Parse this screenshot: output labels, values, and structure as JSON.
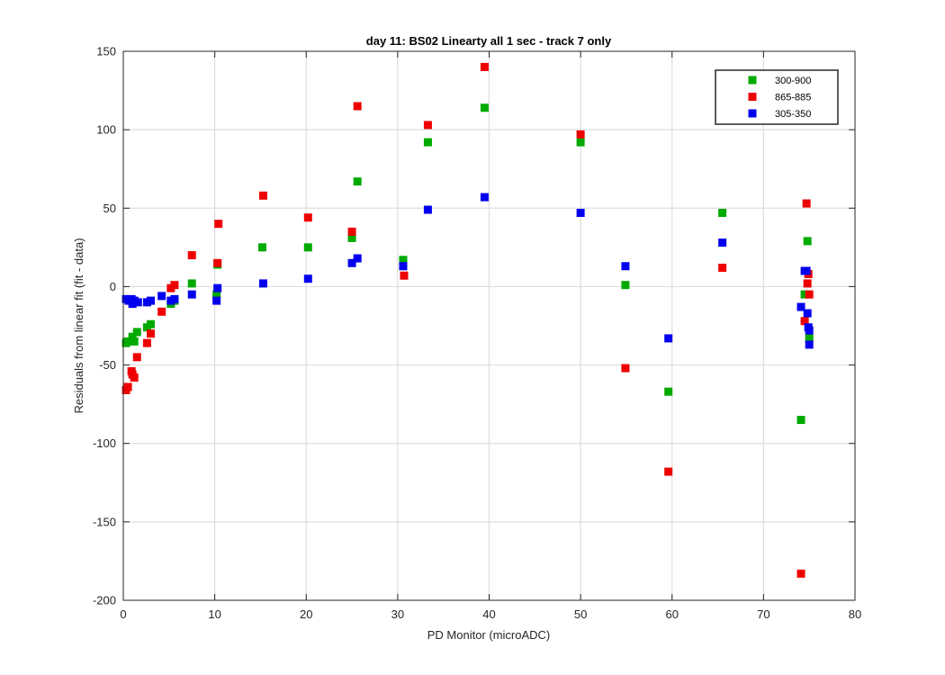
{
  "chart_data": {
    "type": "scatter",
    "title": "day 11: BS02   Linearty all 1 sec - track 7 only",
    "xlabel": "PD Monitor (microADC)",
    "ylabel": "Residuals from linear fit (fit - data)",
    "xlim": [
      0,
      80
    ],
    "ylim": [
      -200,
      150
    ],
    "xticks": [
      0,
      10,
      20,
      30,
      40,
      50,
      60,
      70,
      80
    ],
    "yticks": [
      -200,
      -150,
      -100,
      -50,
      0,
      50,
      100,
      150
    ],
    "grid": true,
    "legend_position": "top-right",
    "series": [
      {
        "name": "300-900",
        "color": "#00aa00",
        "points": [
          [
            0.3,
            -36
          ],
          [
            0.5,
            -35
          ],
          [
            0.8,
            -35
          ],
          [
            1.0,
            -32
          ],
          [
            1.2,
            -35
          ],
          [
            1.5,
            -29
          ],
          [
            2.6,
            -26
          ],
          [
            3.0,
            -24
          ],
          [
            5.2,
            -11
          ],
          [
            5.6,
            -9
          ],
          [
            7.5,
            2
          ],
          [
            10.2,
            -5
          ],
          [
            10.3,
            14
          ],
          [
            15.2,
            25
          ],
          [
            20.2,
            25
          ],
          [
            25.0,
            31
          ],
          [
            25.6,
            67
          ],
          [
            30.6,
            17
          ],
          [
            33.3,
            92
          ],
          [
            39.5,
            114
          ],
          [
            50.0,
            92
          ],
          [
            54.9,
            1
          ],
          [
            59.6,
            -67
          ],
          [
            65.5,
            47
          ],
          [
            74.1,
            -85
          ],
          [
            74.5,
            -5
          ],
          [
            74.8,
            29
          ],
          [
            75.0,
            -33
          ]
        ]
      },
      {
        "name": "865-885",
        "color": "#ee0000",
        "points": [
          [
            0.3,
            -66
          ],
          [
            0.5,
            -64
          ],
          [
            0.9,
            -54
          ],
          [
            1.0,
            -56
          ],
          [
            1.2,
            -58
          ],
          [
            1.5,
            -45
          ],
          [
            2.6,
            -36
          ],
          [
            3.0,
            -30
          ],
          [
            4.2,
            -16
          ],
          [
            5.2,
            -1
          ],
          [
            5.6,
            1
          ],
          [
            7.5,
            20
          ],
          [
            10.3,
            15
          ],
          [
            10.4,
            40
          ],
          [
            15.3,
            58
          ],
          [
            20.2,
            44
          ],
          [
            25.0,
            35
          ],
          [
            25.6,
            115
          ],
          [
            30.7,
            7
          ],
          [
            33.3,
            103
          ],
          [
            39.5,
            140
          ],
          [
            50.0,
            97
          ],
          [
            54.9,
            -52
          ],
          [
            59.6,
            -118
          ],
          [
            65.5,
            12
          ],
          [
            74.1,
            -183
          ],
          [
            74.5,
            -22
          ],
          [
            74.7,
            53
          ],
          [
            74.8,
            2
          ],
          [
            74.9,
            8
          ],
          [
            75.0,
            -5
          ]
        ]
      },
      {
        "name": "305-350",
        "color": "#0000ee",
        "points": [
          [
            0.3,
            -8
          ],
          [
            0.6,
            -9
          ],
          [
            0.9,
            -8
          ],
          [
            1.0,
            -11
          ],
          [
            1.2,
            -9
          ],
          [
            1.6,
            -10
          ],
          [
            2.6,
            -10
          ],
          [
            3.0,
            -9
          ],
          [
            4.2,
            -6
          ],
          [
            5.2,
            -9
          ],
          [
            5.6,
            -8
          ],
          [
            7.5,
            -5
          ],
          [
            10.2,
            -9
          ],
          [
            10.3,
            -1
          ],
          [
            15.3,
            2
          ],
          [
            20.2,
            5
          ],
          [
            25.0,
            15
          ],
          [
            25.6,
            18
          ],
          [
            30.6,
            13
          ],
          [
            33.3,
            49
          ],
          [
            39.5,
            57
          ],
          [
            50.0,
            47
          ],
          [
            54.9,
            13
          ],
          [
            59.6,
            -33
          ],
          [
            65.5,
            28
          ],
          [
            74.1,
            -13
          ],
          [
            74.5,
            10
          ],
          [
            74.7,
            10
          ],
          [
            74.8,
            -17
          ],
          [
            74.9,
            -26
          ],
          [
            75.0,
            -28
          ],
          [
            75.0,
            -37
          ]
        ]
      }
    ]
  }
}
